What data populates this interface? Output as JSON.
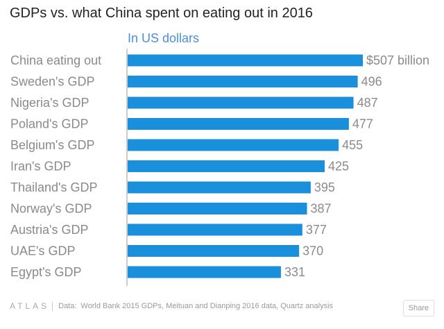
{
  "header": {
    "title": "GDPs vs. what China spent on eating out in 2016",
    "subtitle": "In US dollars"
  },
  "chart_data": {
    "type": "bar",
    "orientation": "horizontal",
    "categories": [
      "China eating out",
      "Sweden's GDP",
      "Nigeria's GDP",
      "Poland's GDP",
      "Belgium's GDP",
      "Iran's GDP",
      "Thailand's GDP",
      "Norway's GDP",
      "Austria's GDP",
      "UAE's GDP",
      "Egypt's GDP"
    ],
    "values": [
      507,
      496,
      487,
      477,
      455,
      425,
      395,
      387,
      377,
      370,
      331
    ],
    "value_labels": [
      "$507 billion",
      "496",
      "487",
      "477",
      "455",
      "425",
      "395",
      "387",
      "377",
      "370",
      "331"
    ],
    "unit": "In US dollars",
    "bar_color": "#1a8fdb",
    "xlim": [
      0,
      507
    ],
    "grid": false,
    "legend": "none"
  },
  "footer": {
    "logo": "ATLAS",
    "source_prefix": "Data:",
    "source": "World Bank 2015 GDPs, Meituan and Dianping 2016 data, Quartz analysis",
    "share_label": "Share"
  }
}
